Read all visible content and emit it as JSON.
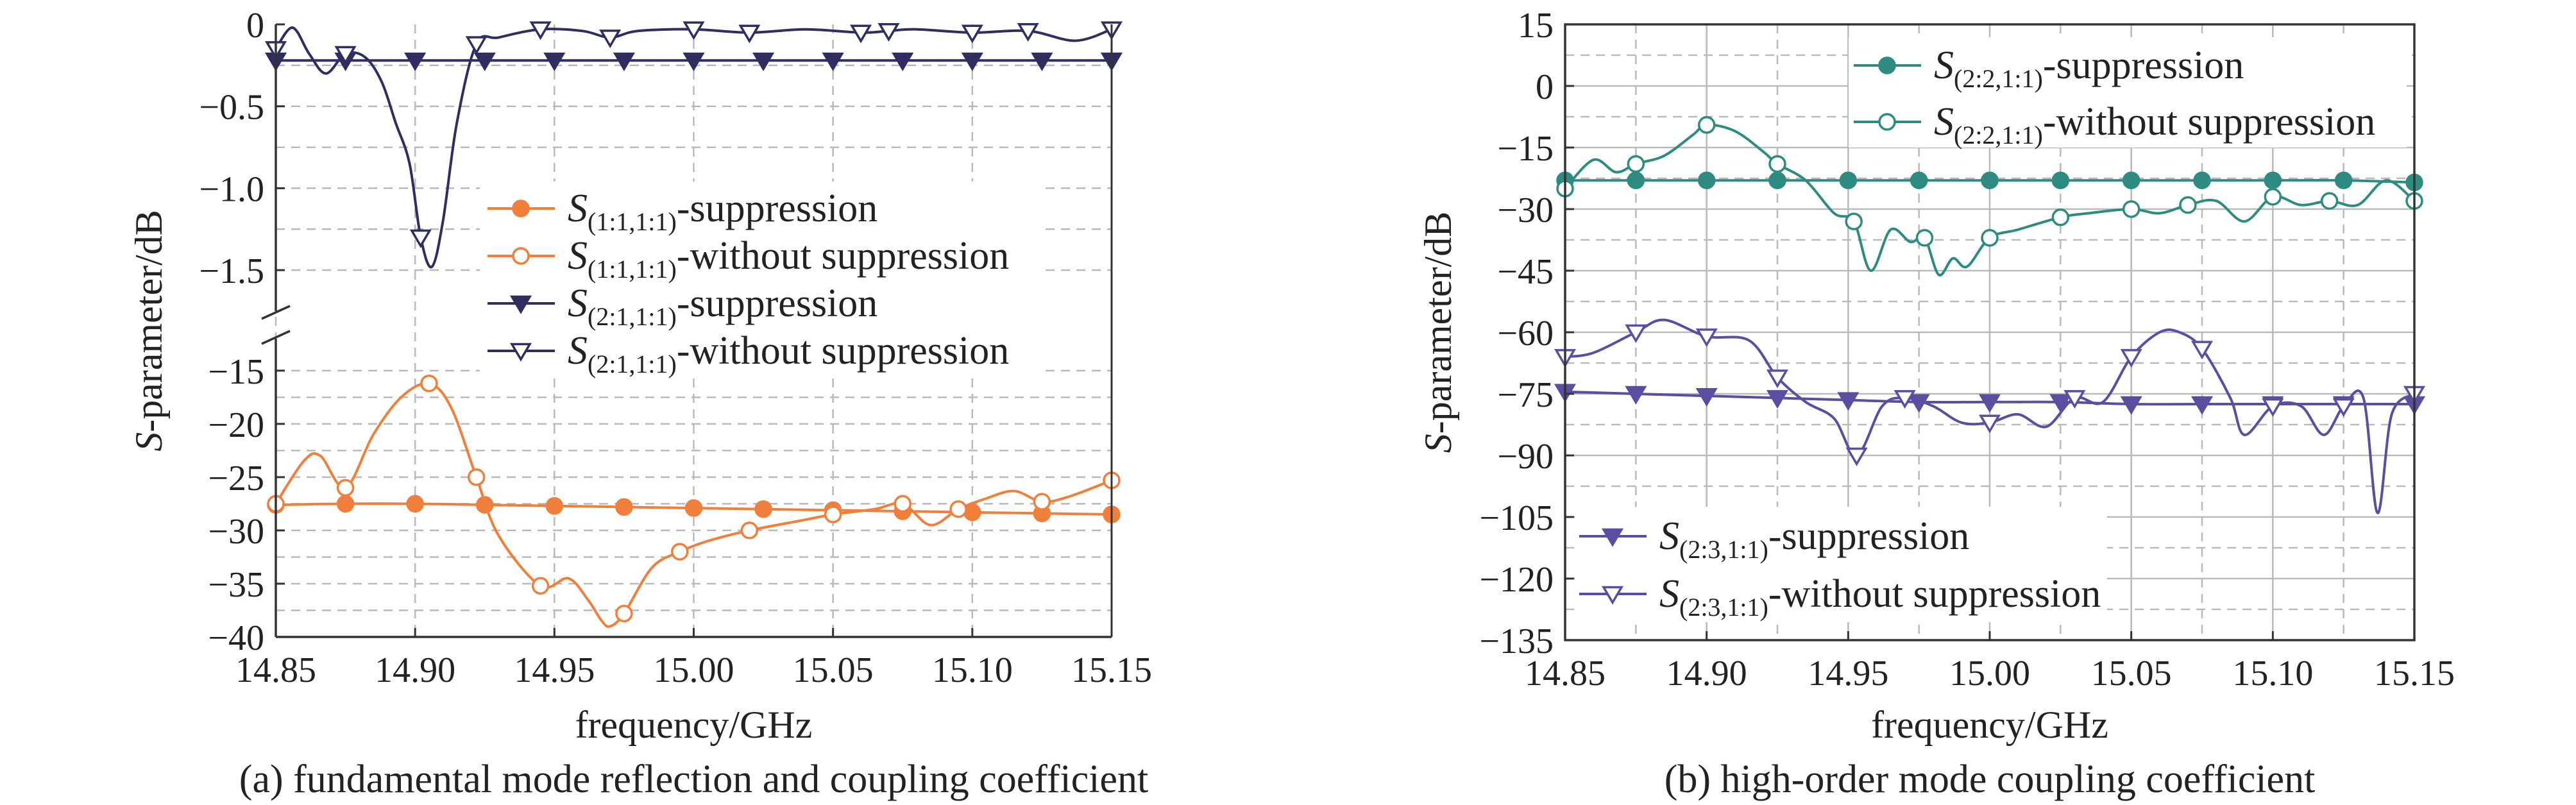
{
  "chart_data": [
    {
      "type": "line",
      "caption": "(a) fundamental mode reflection and coupling coefficient",
      "xlabel": "frequency/GHz",
      "ylabel_italic": "S",
      "ylabel_rest": "-parameter/dB",
      "xlim": [
        14.85,
        15.15
      ],
      "xticks": [
        "14.85",
        "14.90",
        "14.95",
        "15.00",
        "15.05",
        "15.10",
        "15.15"
      ],
      "broken_y_axis": true,
      "upper_panel": {
        "ylim": [
          -1.75,
          0
        ],
        "yticks": [
          "0",
          "−0.5",
          "−1.0",
          "−1.5"
        ],
        "ytick_values": [
          0,
          -0.5,
          -1.0,
          -1.5
        ]
      },
      "lower_panel": {
        "ylim": [
          -40,
          -12
        ],
        "yticks": [
          "−15",
          "−20",
          "−25",
          "−30",
          "−35",
          "−40"
        ],
        "ytick_values": [
          -15,
          -20,
          -25,
          -30,
          -35,
          -40
        ]
      },
      "grid": true,
      "legend_position": "center",
      "series": [
        {
          "name": "S(1:1,1:1)-suppression",
          "sym": "S",
          "sub": "(1:1,1:1)",
          "suffix": "-suppression",
          "color": "#f07f3c",
          "marker": "filled-circle",
          "panel": "lower",
          "x": [
            14.85,
            14.875,
            14.9,
            14.925,
            14.95,
            14.975,
            15.0,
            15.025,
            15.05,
            15.075,
            15.1,
            15.125,
            15.15
          ],
          "y": [
            -27.6,
            -27.5,
            -27.5,
            -27.6,
            -27.7,
            -27.8,
            -27.9,
            -28.0,
            -28.1,
            -28.2,
            -28.3,
            -28.4,
            -28.5
          ]
        },
        {
          "name": "S(1:1,1:1)-without suppression",
          "sym": "S",
          "sub": "(1:1,1:1)",
          "suffix": "-without suppression",
          "color": "#f07f3c",
          "marker": "open-circle",
          "panel": "lower",
          "x": [
            14.85,
            14.86,
            14.866,
            14.875,
            14.885,
            14.895,
            14.905,
            14.913,
            14.922,
            14.93,
            14.945,
            14.955,
            14.962,
            14.967,
            14.97,
            14.975,
            14.985,
            14.995,
            15.005,
            15.02,
            15.04,
            15.05,
            15.065,
            15.075,
            15.085,
            15.095,
            15.105,
            15.115,
            15.125,
            15.135,
            15.15
          ],
          "y": [
            -27.5,
            -23.5,
            -23.0,
            -26.0,
            -21.0,
            -17.5,
            -16.2,
            -18.5,
            -25.0,
            -30.5,
            -35.2,
            -34.5,
            -36.5,
            -38.5,
            -39.0,
            -37.8,
            -33.5,
            -32.0,
            -31.0,
            -30.0,
            -29.0,
            -28.5,
            -28.0,
            -27.5,
            -29.5,
            -28.0,
            -27.0,
            -26.3,
            -27.3,
            -26.8,
            -25.3
          ]
        },
        {
          "name": "S(2:1,1:1)-suppression",
          "sym": "S",
          "sub": "(2:1,1:1)",
          "suffix": "-suppression",
          "color": "#2e2f60",
          "marker": "filled-triangle-down",
          "panel": "upper",
          "x": [
            14.85,
            14.875,
            14.9,
            14.925,
            14.95,
            14.975,
            15.0,
            15.025,
            15.05,
            15.075,
            15.1,
            15.125,
            15.15
          ],
          "y": [
            -0.22,
            -0.22,
            -0.22,
            -0.22,
            -0.22,
            -0.22,
            -0.22,
            -0.22,
            -0.22,
            -0.22,
            -0.22,
            -0.22,
            -0.22
          ]
        },
        {
          "name": "S(2:1,1:1)-without suppression",
          "sym": "S",
          "sub": "(2:1,1:1)",
          "suffix": "-without suppression",
          "color": "#2e2f60",
          "marker": "open-triangle-down",
          "panel": "upper",
          "x": [
            14.85,
            14.856,
            14.862,
            14.868,
            14.875,
            14.882,
            14.888,
            14.893,
            14.898,
            14.902,
            14.906,
            14.91,
            14.915,
            14.922,
            14.93,
            14.945,
            14.96,
            14.97,
            14.98,
            15.0,
            15.02,
            15.04,
            15.06,
            15.07,
            15.08,
            15.1,
            15.12,
            15.137,
            15.15
          ],
          "y": [
            -0.15,
            -0.02,
            -0.18,
            -0.3,
            -0.18,
            -0.2,
            -0.35,
            -0.6,
            -0.85,
            -1.3,
            -1.48,
            -1.2,
            -0.6,
            -0.12,
            -0.08,
            -0.03,
            -0.04,
            -0.08,
            -0.04,
            -0.03,
            -0.05,
            -0.03,
            -0.05,
            -0.04,
            -0.03,
            -0.05,
            -0.04,
            -0.1,
            -0.03
          ]
        }
      ]
    },
    {
      "type": "line",
      "caption": "(b) high-order mode coupling coefficient",
      "xlabel": "frequency/GHz",
      "ylabel_italic": "S",
      "ylabel_rest": "-parameter/dB",
      "xlim": [
        14.85,
        15.15
      ],
      "ylim": [
        -135,
        15
      ],
      "xticks": [
        "14.85",
        "14.90",
        "14.95",
        "15.00",
        "15.05",
        "15.10",
        "15.15"
      ],
      "yticks": [
        "15",
        "0",
        "−15",
        "−30",
        "−45",
        "−60",
        "−75",
        "−90",
        "−105",
        "−120",
        "−135"
      ],
      "ytick_values": [
        15,
        0,
        -15,
        -30,
        -45,
        -60,
        -75,
        -90,
        -105,
        -120,
        -135
      ],
      "grid": true,
      "legend_position": "upper-right and lower-left",
      "series": [
        {
          "name": "S(2:2,1:1)-suppression",
          "sym": "S",
          "sub": "(2:2,1:1)",
          "suffix": "-suppression",
          "color": "#2e8b82",
          "marker": "filled-circle",
          "x": [
            14.85,
            14.875,
            14.9,
            14.925,
            14.95,
            14.975,
            15.0,
            15.025,
            15.05,
            15.075,
            15.1,
            15.125,
            15.15
          ],
          "y": [
            -23,
            -23,
            -23,
            -23,
            -23,
            -23,
            -23,
            -23,
            -23,
            -23,
            -23,
            -23,
            -23.5
          ]
        },
        {
          "name": "S(2:2,1:1)-without suppression",
          "sym": "S",
          "sub": "(2:2,1:1)",
          "suffix": "-without suppression",
          "color": "#2e8b82",
          "marker": "open-circle",
          "x": [
            14.85,
            14.86,
            14.868,
            14.875,
            14.885,
            14.895,
            14.9,
            14.91,
            14.92,
            14.925,
            14.935,
            14.945,
            14.952,
            14.958,
            14.965,
            14.972,
            14.977,
            14.982,
            14.987,
            14.992,
            15.0,
            15.01,
            15.025,
            15.035,
            15.05,
            15.06,
            15.07,
            15.08,
            15.09,
            15.1,
            15.11,
            15.12,
            15.13,
            15.14,
            15.15
          ],
          "y": [
            -25,
            -18,
            -21,
            -19,
            -17,
            -12,
            -9.5,
            -11,
            -16,
            -19,
            -23,
            -31,
            -33,
            -45,
            -35,
            -38,
            -37,
            -46,
            -42,
            -44,
            -37,
            -35,
            -32,
            -31,
            -30,
            -31,
            -29,
            -28,
            -33,
            -27,
            -29,
            -28,
            -29,
            -23,
            -28
          ]
        },
        {
          "name": "S(2:3,1:1)-suppression",
          "sym": "S",
          "sub": "(2:3,1:1)",
          "suffix": "-suppression",
          "color": "#5a4ea0",
          "marker": "filled-triangle-down",
          "x": [
            14.85,
            14.875,
            14.9,
            14.925,
            14.95,
            14.975,
            15.0,
            15.025,
            15.05,
            15.075,
            15.1,
            15.125,
            15.15
          ],
          "y": [
            -74.5,
            -75,
            -75.5,
            -76,
            -76.5,
            -77,
            -77,
            -77,
            -77.5,
            -77.5,
            -77.5,
            -77.5,
            -77.5
          ]
        },
        {
          "name": "S(2:3,1:1)-without suppression",
          "sym": "S",
          "sub": "(2:3,1:1)",
          "suffix": "-without suppression",
          "color": "#5a4ea0",
          "marker": "open-triangle-down",
          "x": [
            14.85,
            14.86,
            14.875,
            14.885,
            14.9,
            14.915,
            14.925,
            14.935,
            14.945,
            14.953,
            14.962,
            14.97,
            14.98,
            14.99,
            15.0,
            15.01,
            15.02,
            15.03,
            15.04,
            15.05,
            15.06,
            15.067,
            15.075,
            15.085,
            15.09,
            15.1,
            15.11,
            15.118,
            15.125,
            15.132,
            15.137,
            15.142,
            15.15
          ],
          "y": [
            -66,
            -65,
            -60,
            -57,
            -61,
            -62,
            -71,
            -77,
            -81,
            -90,
            -78,
            -76,
            -78,
            -82,
            -82,
            -80,
            -83,
            -76,
            -77,
            -66,
            -60,
            -60,
            -64,
            -76,
            -85,
            -78,
            -78,
            -85,
            -78,
            -76,
            -104,
            -80,
            -75
          ]
        }
      ],
      "legend_groups": [
        [
          0,
          1
        ],
        [
          2,
          3
        ]
      ]
    }
  ]
}
